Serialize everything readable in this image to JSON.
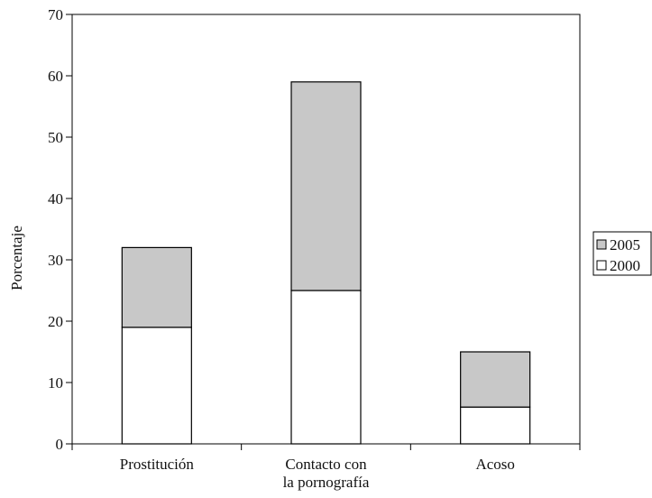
{
  "chart_data": {
    "type": "bar",
    "stacked": true,
    "categories": [
      [
        "Prostitución"
      ],
      [
        "Contacto con",
        "la pornografía"
      ],
      [
        "Acoso"
      ]
    ],
    "series": [
      {
        "name": "2000",
        "values": [
          19,
          25,
          6
        ],
        "color": "#ffffff"
      },
      {
        "name": "2005",
        "values": [
          13,
          34,
          9
        ],
        "color": "#c8c8c8"
      }
    ],
    "ylabel": "Porcentaje",
    "xlabel": "",
    "ylim": [
      0,
      70
    ],
    "yticks": [
      0,
      10,
      20,
      30,
      40,
      50,
      60,
      70
    ],
    "grid": false,
    "legend": {
      "position": "right",
      "order": [
        "2005",
        "2000"
      ]
    },
    "colors": {
      "axis": "#000000",
      "bar_stroke": "#000000"
    }
  }
}
